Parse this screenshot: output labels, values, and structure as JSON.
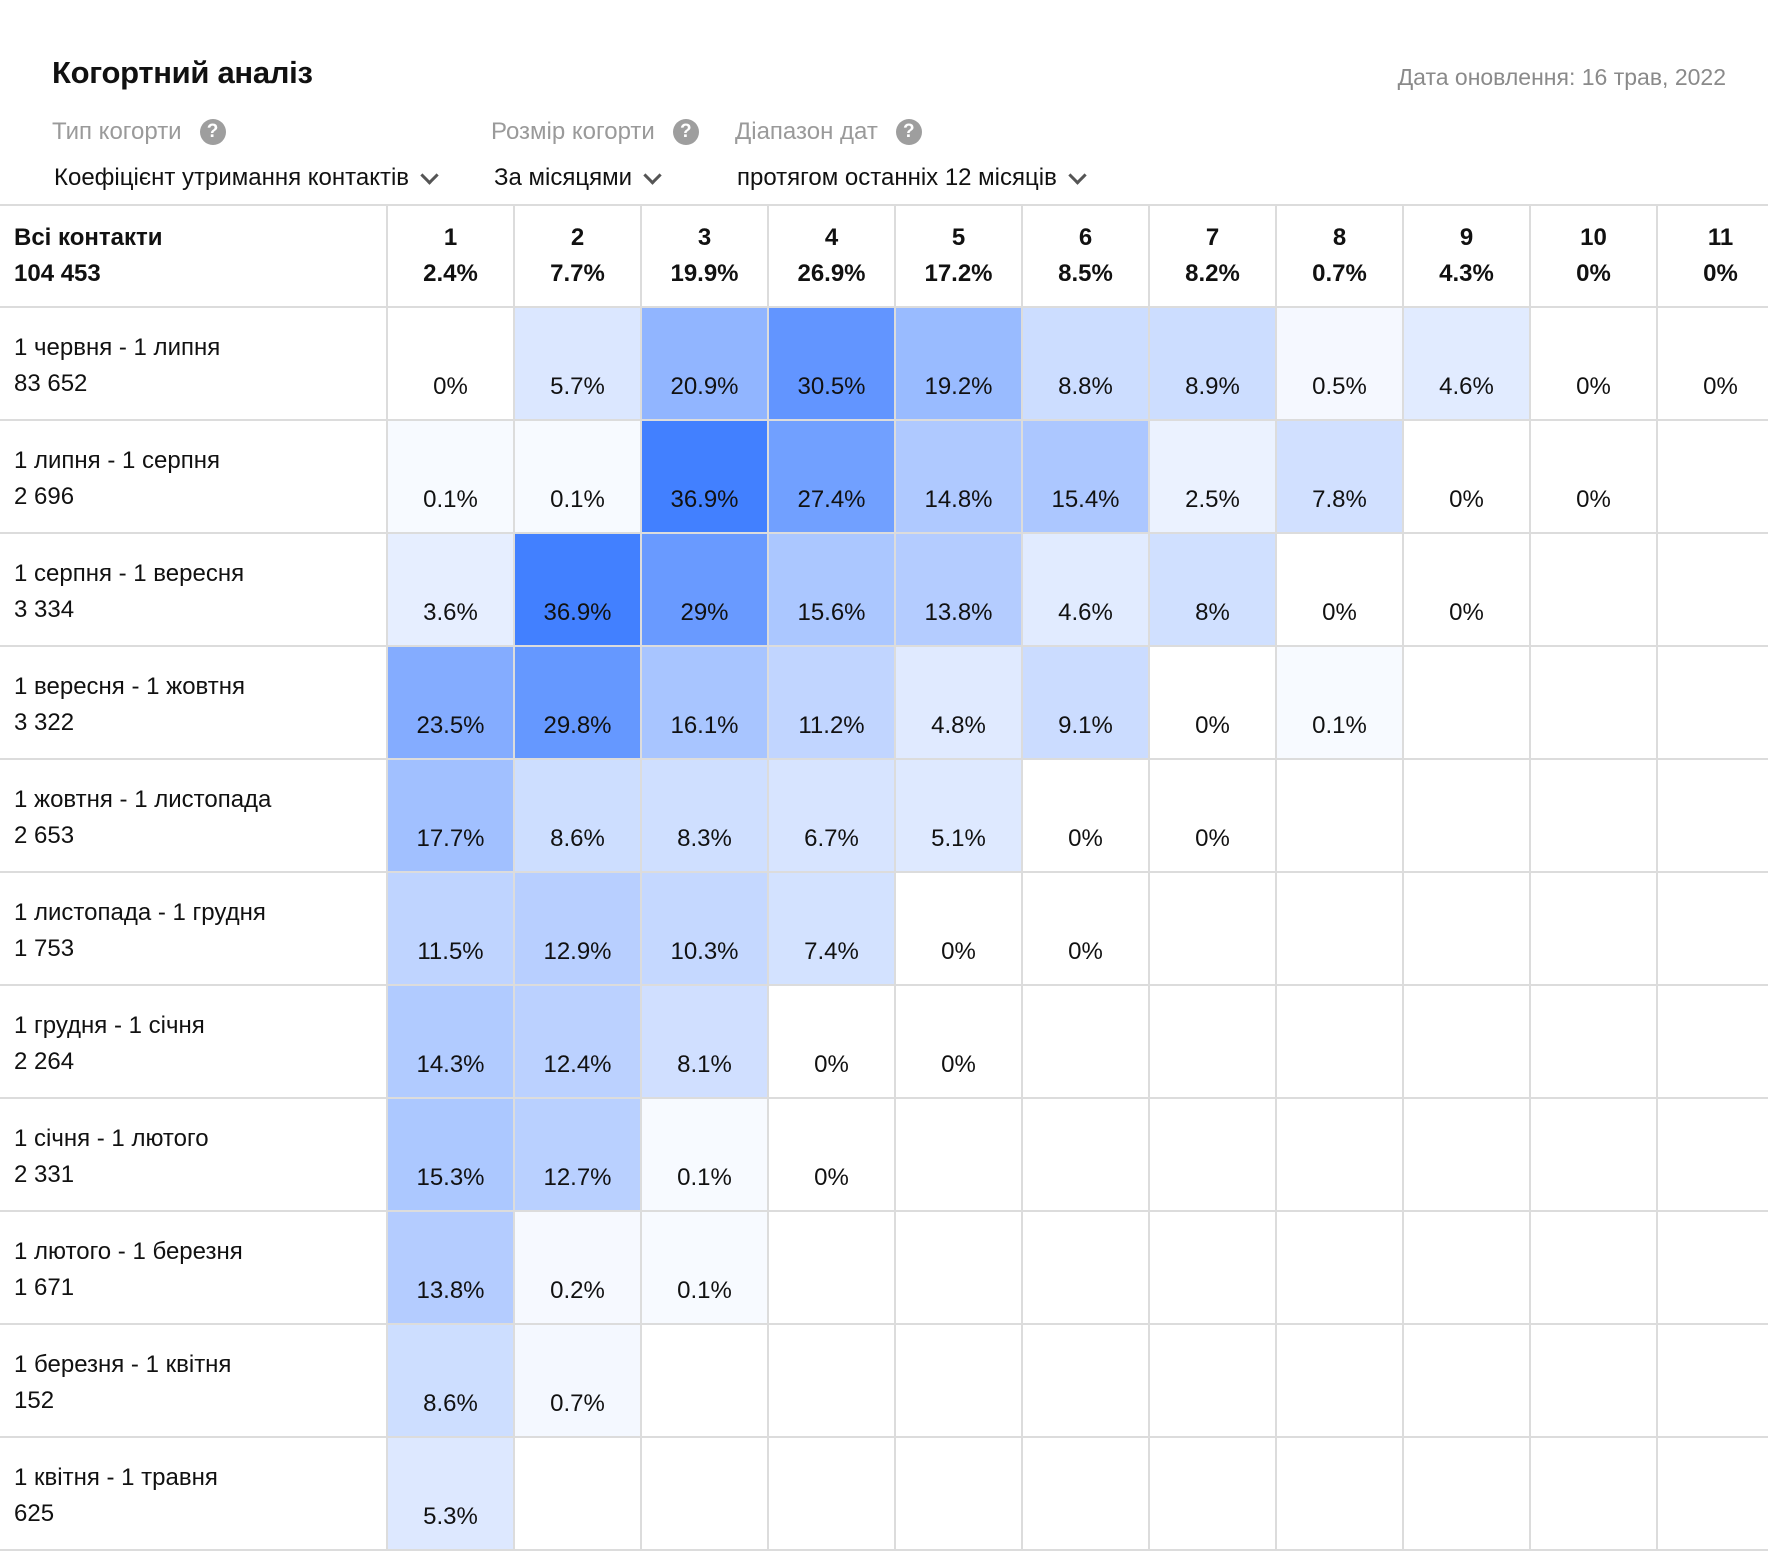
{
  "header": {
    "title": "Когортний аналіз",
    "updated_label": "Дата оновлення:",
    "updated_value": "16 трав, 2022"
  },
  "filters": [
    {
      "label": "Тип когорти",
      "value": "Коефіцієнт утримання контактів"
    },
    {
      "label": "Розмір когорти",
      "value": "За місяцями"
    },
    {
      "label": "Діапазон дат",
      "value": "протягом останніх 12 місяців"
    }
  ],
  "help_glyph": "?",
  "accent_color": "#4282ff",
  "table": {
    "total_label": "Всі контакти",
    "total_value": "104 453",
    "columns": [
      {
        "n": "1",
        "avg": "2.4%"
      },
      {
        "n": "2",
        "avg": "7.7%"
      },
      {
        "n": "3",
        "avg": "19.9%"
      },
      {
        "n": "4",
        "avg": "26.9%"
      },
      {
        "n": "5",
        "avg": "17.2%"
      },
      {
        "n": "6",
        "avg": "8.5%"
      },
      {
        "n": "7",
        "avg": "8.2%"
      },
      {
        "n": "8",
        "avg": "0.7%"
      },
      {
        "n": "9",
        "avg": "4.3%"
      },
      {
        "n": "10",
        "avg": "0%"
      },
      {
        "n": "11",
        "avg": "0%"
      }
    ],
    "rows": [
      {
        "range": "1 червня - 1 липня",
        "count": "83 652",
        "values": [
          "0%",
          "5.7%",
          "20.9%",
          "30.5%",
          "19.2%",
          "8.8%",
          "8.9%",
          "0.5%",
          "4.6%",
          "0%",
          "0%"
        ]
      },
      {
        "range": "1 липня - 1 серпня",
        "count": "2 696",
        "values": [
          "0.1%",
          "0.1%",
          "36.9%",
          "27.4%",
          "14.8%",
          "15.4%",
          "2.5%",
          "7.8%",
          "0%",
          "0%"
        ]
      },
      {
        "range": "1 серпня - 1 вересня",
        "count": "3 334",
        "values": [
          "3.6%",
          "36.9%",
          "29%",
          "15.6%",
          "13.8%",
          "4.6%",
          "8%",
          "0%",
          "0%"
        ]
      },
      {
        "range": "1 вересня - 1 жовтня",
        "count": "3 322",
        "values": [
          "23.5%",
          "29.8%",
          "16.1%",
          "11.2%",
          "4.8%",
          "9.1%",
          "0%",
          "0.1%"
        ]
      },
      {
        "range": "1 жовтня - 1 листопада",
        "count": "2 653",
        "values": [
          "17.7%",
          "8.6%",
          "8.3%",
          "6.7%",
          "5.1%",
          "0%",
          "0%"
        ]
      },
      {
        "range": "1 листопада - 1 грудня",
        "count": "1 753",
        "values": [
          "11.5%",
          "12.9%",
          "10.3%",
          "7.4%",
          "0%",
          "0%"
        ]
      },
      {
        "range": "1 грудня - 1 січня",
        "count": "2 264",
        "values": [
          "14.3%",
          "12.4%",
          "8.1%",
          "0%",
          "0%"
        ]
      },
      {
        "range": "1 січня - 1 лютого",
        "count": "2 331",
        "values": [
          "15.3%",
          "12.7%",
          "0.1%",
          "0%"
        ]
      },
      {
        "range": "1 лютого - 1 березня",
        "count": "1 671",
        "values": [
          "13.8%",
          "0.2%",
          "0.1%"
        ]
      },
      {
        "range": "1 березня - 1 квітня",
        "count": "152",
        "values": [
          "8.6%",
          "0.7%"
        ]
      },
      {
        "range": "1 квітня - 1 травня",
        "count": "625",
        "values": [
          "5.3%"
        ]
      }
    ]
  }
}
